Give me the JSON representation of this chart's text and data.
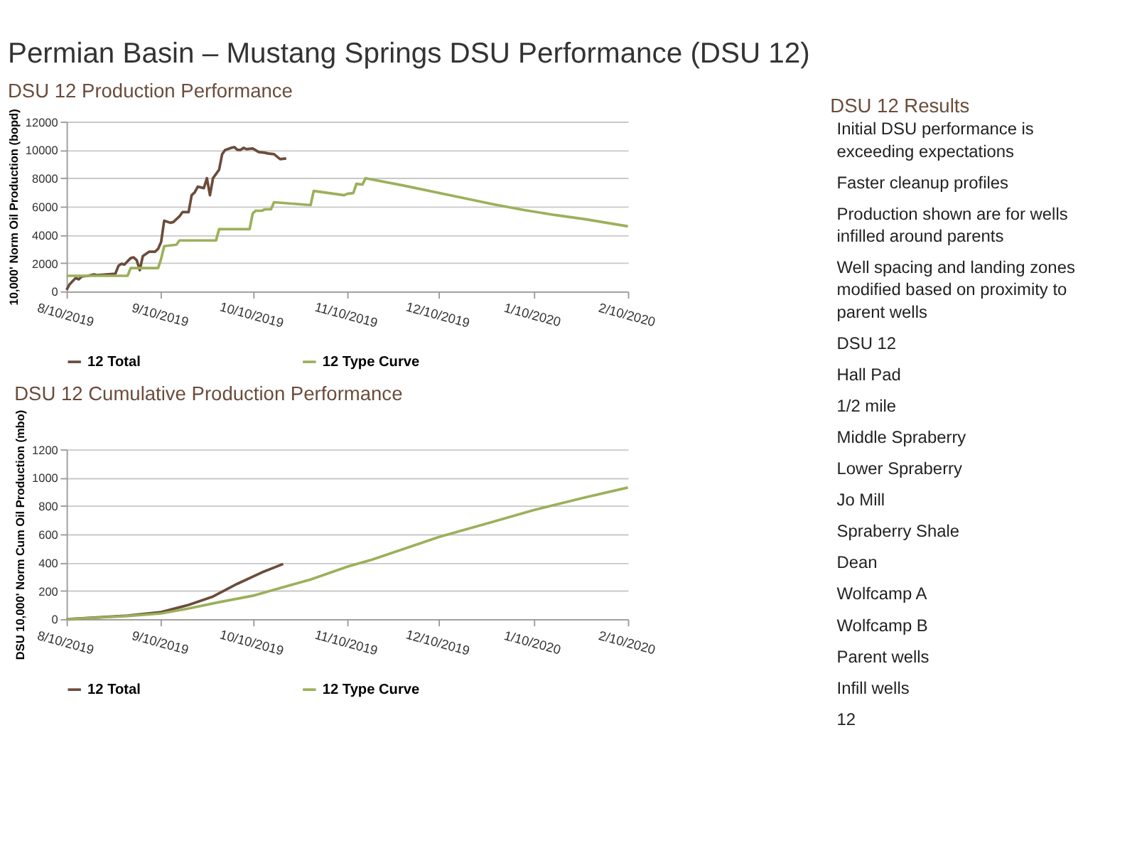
{
  "chart_data": [
    {
      "type": "line",
      "title": "Permian Basin – Mustang Springs DSU Performance (DSU 12)",
      "subtitle": "DSU 12 Production Performance",
      "ylabel": "10,000' Norm Oil Production (bopd)",
      "xlim": [
        "2019-08-10",
        "2020-02-10"
      ],
      "xticks": [
        {
          "value": "2019-08-10",
          "label": "8/10/2019"
        },
        {
          "value": "2019-09-10",
          "label": "9/10/2019"
        },
        {
          "value": "2019-10-10",
          "label": "10/10/2019"
        },
        {
          "value": "2019-11-10",
          "label": "11/10/2019"
        },
        {
          "value": "2019-12-10",
          "label": "12/10/2019"
        },
        {
          "value": "2020-01-10",
          "label": "1/10/2020"
        },
        {
          "value": "2020-02-10",
          "label": "2/10/2020"
        }
      ],
      "ylim": [
        0,
        12000
      ],
      "yticks": [
        0,
        2000,
        4000,
        6000,
        8000,
        10000,
        12000
      ],
      "grid": "y",
      "legend": "bottom",
      "marker": "none",
      "line_style": "solid",
      "series": [
        {
          "name": "12 Total",
          "color": "#6b4c3b",
          "x": [
            "2019-08-10",
            "2019-08-11",
            "2019-08-13",
            "2019-08-14",
            "2019-08-15",
            "2019-08-17",
            "2019-08-19",
            "2019-08-20",
            "2019-08-23",
            "2019-08-26",
            "2019-08-27",
            "2019-08-28",
            "2019-08-29",
            "2019-08-31",
            "2019-09-01",
            "2019-09-02",
            "2019-09-03",
            "2019-09-04",
            "2019-09-06",
            "2019-09-08",
            "2019-09-09",
            "2019-09-10",
            "2019-09-11",
            "2019-09-13",
            "2019-09-14",
            "2019-09-16",
            "2019-09-17",
            "2019-09-19",
            "2019-09-20",
            "2019-09-21",
            "2019-09-22",
            "2019-09-24",
            "2019-09-25",
            "2019-09-26",
            "2019-09-27",
            "2019-09-29",
            "2019-09-30",
            "2019-10-01",
            "2019-10-03",
            "2019-10-04",
            "2019-10-05",
            "2019-10-06",
            "2019-10-07",
            "2019-10-08",
            "2019-10-10",
            "2019-10-12",
            "2019-10-14",
            "2019-10-15",
            "2019-10-17",
            "2019-10-19",
            "2019-10-21"
          ],
          "values": [
            100,
            500,
            950,
            850,
            1050,
            1100,
            1200,
            1150,
            1200,
            1250,
            1800,
            1950,
            1900,
            2350,
            2400,
            2200,
            1500,
            2500,
            2800,
            2800,
            3000,
            3500,
            5000,
            4850,
            4900,
            5300,
            5600,
            5600,
            6800,
            7000,
            7400,
            7300,
            8000,
            6800,
            8000,
            8600,
            9700,
            10000,
            10150,
            10200,
            10000,
            10000,
            10150,
            10050,
            10100,
            9850,
            9800,
            9750,
            9700,
            9350,
            9400
          ]
        },
        {
          "name": "12 Type Curve",
          "color": "#9bb05a",
          "x": [
            "2019-08-10",
            "2019-08-30",
            "2019-08-31",
            "2019-09-09",
            "2019-09-10",
            "2019-09-11",
            "2019-09-13",
            "2019-09-15",
            "2019-09-16",
            "2019-09-28",
            "2019-09-29",
            "2019-10-09",
            "2019-10-10",
            "2019-10-11",
            "2019-10-13",
            "2019-10-14",
            "2019-10-16",
            "2019-10-17",
            "2019-10-29",
            "2019-10-30",
            "2019-11-09",
            "2019-11-10",
            "2019-11-12",
            "2019-11-13",
            "2019-11-15",
            "2019-11-16",
            "2019-11-28",
            "2019-12-18",
            "2019-12-28",
            "2020-01-07",
            "2020-01-17",
            "2020-01-27",
            "2020-02-10"
          ],
          "values": [
            1100,
            1100,
            1650,
            1650,
            2300,
            3200,
            3250,
            3300,
            3600,
            3600,
            4400,
            4400,
            5500,
            5700,
            5700,
            5800,
            5800,
            6300,
            6100,
            7100,
            6800,
            6900,
            6950,
            7600,
            7550,
            8000,
            7500,
            6600,
            6150,
            5750,
            5400,
            5100,
            4600
          ]
        }
      ]
    },
    {
      "type": "line",
      "subtitle": "DSU 12 Cumulative Production Performance",
      "ylabel": "DSU 10,000' Norm Cum Oil Production (mbo)",
      "xlim": [
        "2019-08-10",
        "2020-02-10"
      ],
      "xticks": [
        {
          "value": "2019-08-10",
          "label": "8/10/2019"
        },
        {
          "value": "2019-09-10",
          "label": "9/10/2019"
        },
        {
          "value": "2019-10-10",
          "label": "10/10/2019"
        },
        {
          "value": "2019-11-10",
          "label": "11/10/2019"
        },
        {
          "value": "2019-12-10",
          "label": "12/10/2019"
        },
        {
          "value": "2020-01-10",
          "label": "1/10/2020"
        },
        {
          "value": "2020-02-10",
          "label": "2/10/2020"
        }
      ],
      "ylim": [
        0,
        1200
      ],
      "yticks": [
        0,
        200,
        400,
        600,
        800,
        1000,
        1200
      ],
      "grid": "y",
      "legend": "bottom",
      "marker": "none",
      "line_style": "solid",
      "series": [
        {
          "name": "12 Total",
          "color": "#6b4c3b",
          "x": [
            "2019-08-10",
            "2019-08-20",
            "2019-08-30",
            "2019-09-10",
            "2019-09-19",
            "2019-09-27",
            "2019-10-05",
            "2019-10-13",
            "2019-10-20"
          ],
          "values": [
            0,
            12,
            25,
            50,
            100,
            160,
            250,
            330,
            390
          ]
        },
        {
          "name": "12 Type Curve",
          "color": "#9bb05a",
          "x": [
            "2019-08-10",
            "2019-08-20",
            "2019-08-30",
            "2019-09-10",
            "2019-09-19",
            "2019-09-29",
            "2019-10-10",
            "2019-10-19",
            "2019-10-29",
            "2019-11-10",
            "2019-11-18",
            "2019-12-10",
            "2019-12-28",
            "2020-01-10",
            "2020-01-27",
            "2020-02-10"
          ],
          "values": [
            0,
            10,
            22,
            40,
            75,
            120,
            165,
            220,
            280,
            370,
            420,
            580,
            690,
            770,
            860,
            930
          ]
        }
      ]
    },
    {
      "type": "other",
      "title": "DSU 12 Results",
      "annotations": [
        "Initial DSU performance is exceeding expectations",
        "Faster cleanup profiles",
        "Production shown are for wells infilled around parents",
        "Well spacing and landing zones modified based on proximity to parent wells",
        "DSU 12",
        "Hall Pad",
        "1/2 mile",
        "Middle Spraberry",
        "Lower Spraberry",
        "Jo Mill",
        "Spraberry Shale",
        "Dean",
        "Wolfcamp A",
        "Wolfcamp B",
        "Parent wells",
        "Infill wells",
        "12"
      ]
    }
  ]
}
